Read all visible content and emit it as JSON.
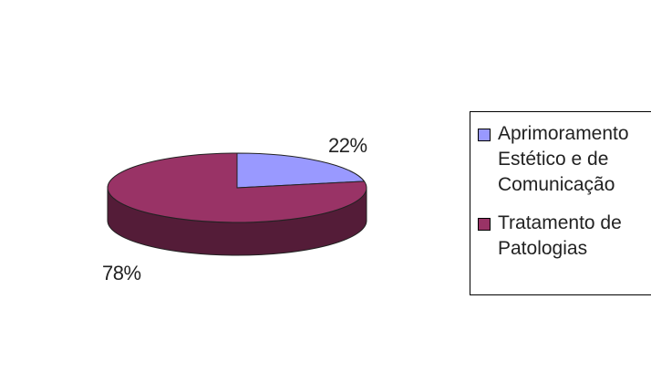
{
  "chart_data": {
    "type": "pie",
    "style": "3d",
    "categories": [
      "Aprimoramento\nEstético e de\nComunicação",
      "Tratamento de\nPatologias"
    ],
    "values": [
      22,
      78
    ],
    "value_labels": [
      "22%",
      "78%"
    ],
    "colors": [
      "#9999ff",
      "#993366"
    ],
    "legend": "right"
  }
}
